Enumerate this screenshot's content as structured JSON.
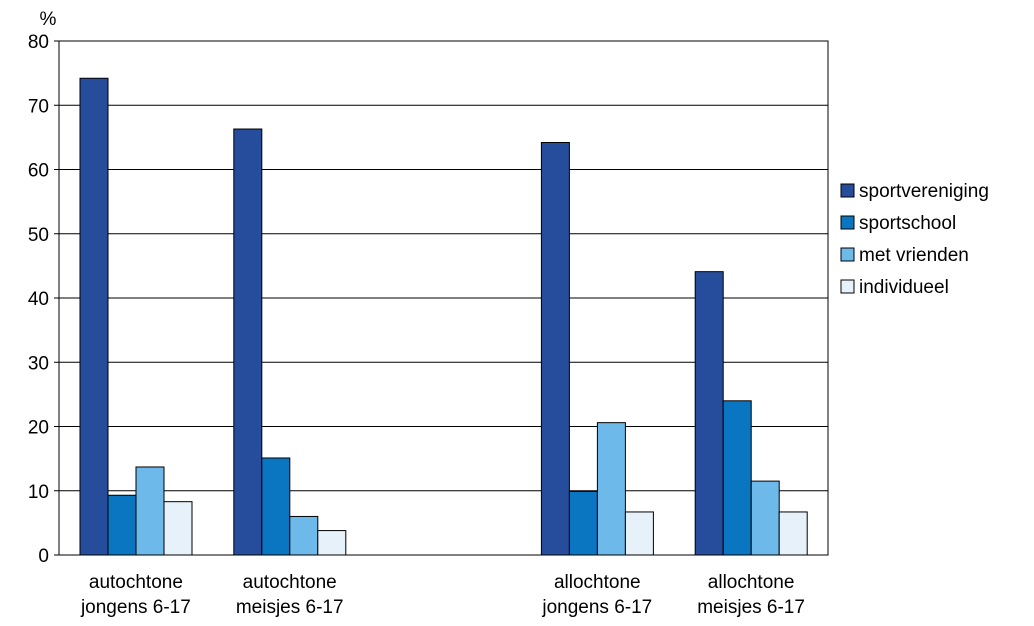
{
  "chart_data": {
    "type": "bar",
    "ylabel": "%",
    "ylim": [
      0,
      80
    ],
    "yticks": [
      0,
      10,
      20,
      30,
      40,
      50,
      60,
      70,
      80
    ],
    "grid": "horizontal",
    "legend_position": "right",
    "categories": [
      {
        "line1": "autochtone",
        "line2": "jongens 6-17",
        "slot": 0
      },
      {
        "line1": "autochtone",
        "line2": "meisjes 6-17",
        "slot": 1
      },
      {
        "line1": "allochtone",
        "line2": "jongens 6-17",
        "slot": 3
      },
      {
        "line1": "allochtone",
        "line2": "meisjes 6-17",
        "slot": 4
      }
    ],
    "series": [
      {
        "name": "sportvereniging",
        "color": "#254D9B",
        "values": [
          74.2,
          66.3,
          64.2,
          44.1
        ]
      },
      {
        "name": "sportschool",
        "color": "#0A76C2",
        "values": [
          9.3,
          15.1,
          9.9,
          24.0
        ]
      },
      {
        "name": "met vrienden",
        "color": "#6DB9EA",
        "values": [
          13.7,
          6.0,
          20.6,
          11.5
        ]
      },
      {
        "name": "individueel",
        "color": "#E6F1FA",
        "values": [
          8.3,
          3.8,
          6.7,
          6.7
        ]
      }
    ]
  }
}
